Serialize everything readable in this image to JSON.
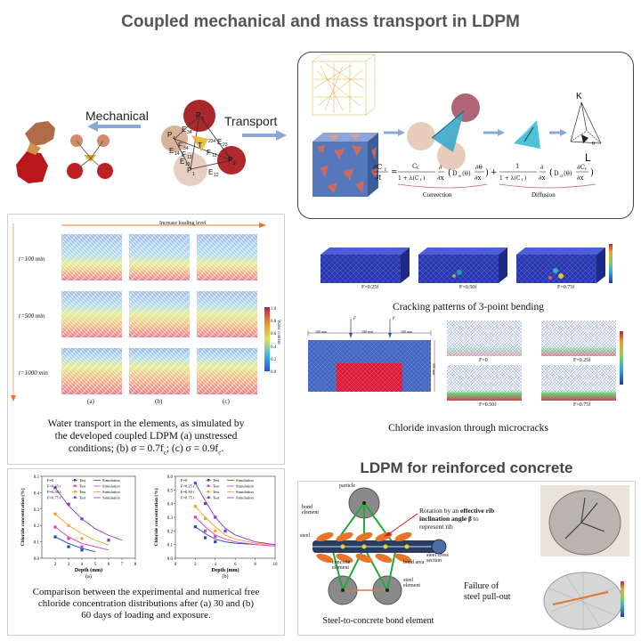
{
  "title": "Coupled mechanical and mass transport in LDPM",
  "mechanical": {
    "label": "Mechanical",
    "tokens": [
      "P",
      "3",
      "P",
      "4",
      "F",
      "34",
      "F",
      "13",
      "T",
      "234",
      "E",
      "23",
      "F",
      "12",
      "E",
      "34",
      "E",
      "14",
      "E",
      "13",
      "P",
      "2",
      "P",
      "1",
      "E",
      "12"
    ]
  },
  "transport": {
    "label": "Transport",
    "convection_label": "Convection",
    "diffusion_label": "Diffusion",
    "K_label": "K",
    "L_label": "L",
    "theta_label": "θ"
  },
  "water_panel": {
    "top_label": "Increase loading level",
    "rows": [
      "t=100 min",
      "t=500 min",
      "t=1000 min"
    ],
    "cols": [
      "(a)",
      "(b)",
      "(c)"
    ],
    "scale_ticks": [
      "1.0",
      "0.8",
      "0.6",
      "0.4",
      "0.2",
      "0.0"
    ],
    "scale_label": "Water content",
    "caption_lines": [
      "Water transport in the elements, as simulated by",
      "the developed coupled LDPM (a) unstressed",
      "conditions; (b) σ = 0.7f",
      "; (c) σ = 0.9f",
      "."
    ],
    "sub": "c"
  },
  "chloride_chart": {
    "caption_lines": [
      "Comparison between the experimental and numerical free",
      "chloride concentration distributions after (a) 30 and (b)",
      "60 days of loading and exposure."
    ]
  },
  "chart_data": [
    {
      "type": "line",
      "title": "",
      "xlabel": "Depth (mm)",
      "ylabel": "Chloride concentration (%)",
      "xlim": [
        1,
        8
      ],
      "ylim": [
        0.0,
        0.5
      ],
      "xticks": [
        2,
        3,
        4,
        5,
        6,
        7,
        8
      ],
      "yticks": [
        0.0,
        0.1,
        0.2,
        0.3,
        0.4,
        0.5
      ],
      "legend_labels": [
        "F=0",
        "F=0.25 f",
        "F=0.50 f",
        "F=0.75 f"
      ],
      "legend_test": "Test",
      "legend_sim": "Simulation",
      "sub_label": "(a)",
      "colors": [
        "#2244cc",
        "#dd44aa",
        "#f2a12a",
        "#8833cc"
      ],
      "series": [
        {
          "name": "F=0",
          "test": [
            [
              2,
              0.13
            ],
            [
              3,
              0.07
            ],
            [
              4,
              0.05
            ]
          ],
          "simulation": [
            [
              2,
              0.13
            ],
            [
              3,
              0.09
            ],
            [
              4,
              0.06
            ],
            [
              5,
              0.04
            ]
          ]
        },
        {
          "name": "F=0.25",
          "test": [
            [
              2,
              0.19
            ],
            [
              3,
              0.12
            ],
            [
              4,
              0.07
            ]
          ],
          "simulation": [
            [
              2,
              0.19
            ],
            [
              3,
              0.13
            ],
            [
              4,
              0.09
            ],
            [
              5,
              0.07
            ],
            [
              6,
              0.05
            ]
          ]
        },
        {
          "name": "F=0.50",
          "test": [
            [
              2,
              0.27
            ],
            [
              3,
              0.2
            ],
            [
              4,
              0.12
            ]
          ],
          "simulation": [
            [
              2,
              0.27
            ],
            [
              3,
              0.2
            ],
            [
              4,
              0.15
            ],
            [
              5,
              0.11
            ],
            [
              6,
              0.08
            ]
          ]
        },
        {
          "name": "F=0.75",
          "test": [
            [
              2,
              0.43
            ],
            [
              3,
              0.33
            ],
            [
              4,
              0.24
            ],
            [
              6,
              0.11
            ]
          ],
          "simulation": [
            [
              2,
              0.43
            ],
            [
              3,
              0.32
            ],
            [
              4,
              0.24
            ],
            [
              5,
              0.18
            ],
            [
              6,
              0.14
            ],
            [
              7,
              0.11
            ]
          ]
        }
      ]
    },
    {
      "type": "line",
      "title": "",
      "xlabel": "Depth (mm)",
      "ylabel": "Chloride concentration (%)",
      "xlim": [
        0,
        10
      ],
      "ylim": [
        0.0,
        0.6
      ],
      "xticks": [
        0,
        2,
        4,
        6,
        8,
        10
      ],
      "yticks": [
        0.0,
        0.1,
        0.2,
        0.3,
        0.4,
        0.5,
        0.6
      ],
      "legend_labels": [
        "F=0",
        "F=0.25 f",
        "F=0.50 f",
        "F=0.75 f"
      ],
      "legend_test": "Test",
      "legend_sim": "Simulation",
      "sub_label": "(b)",
      "colors": [
        "#2244cc",
        "#dd44aa",
        "#f2a12a",
        "#8833cc"
      ],
      "series": [
        {
          "name": "F=0",
          "test": [
            [
              2,
              0.23
            ],
            [
              3,
              0.15
            ],
            [
              4,
              0.12
            ]
          ],
          "simulation": [
            [
              2,
              0.23
            ],
            [
              3,
              0.18
            ],
            [
              4,
              0.14
            ],
            [
              5,
              0.12
            ],
            [
              6,
              0.11
            ],
            [
              8,
              0.1
            ],
            [
              10,
              0.09
            ]
          ]
        },
        {
          "name": "F=0.25",
          "test": [
            [
              2,
              0.3
            ],
            [
              3,
              0.2
            ],
            [
              4,
              0.16
            ]
          ],
          "simulation": [
            [
              2,
              0.3
            ],
            [
              3,
              0.23
            ],
            [
              4,
              0.17
            ],
            [
              5,
              0.14
            ],
            [
              6,
              0.12
            ],
            [
              8,
              0.1
            ],
            [
              10,
              0.09
            ]
          ]
        },
        {
          "name": "F=0.50",
          "test": [
            [
              2,
              0.38
            ],
            [
              3,
              0.29
            ],
            [
              4,
              0.2
            ]
          ],
          "simulation": [
            [
              2,
              0.38
            ],
            [
              3,
              0.3
            ],
            [
              4,
              0.23
            ],
            [
              5,
              0.17
            ],
            [
              6,
              0.14
            ],
            [
              8,
              0.11
            ],
            [
              10,
              0.1
            ]
          ]
        },
        {
          "name": "F=0.75",
          "test": [
            [
              2,
              0.55
            ],
            [
              3,
              0.4
            ],
            [
              4,
              0.3
            ],
            [
              5,
              0.2
            ]
          ],
          "simulation": [
            [
              2,
              0.55
            ],
            [
              3,
              0.42
            ],
            [
              4,
              0.3
            ],
            [
              5,
              0.22
            ],
            [
              6,
              0.17
            ],
            [
              8,
              0.12
            ],
            [
              10,
              0.1
            ]
          ]
        }
      ]
    }
  ],
  "cracking": {
    "labels": [
      "F=0.25f",
      "F=0.50f",
      "F=0.75f"
    ],
    "caption": "Cracking patterns of 3-point bending"
  },
  "chloride_invasion": {
    "dims": [
      "100 mm",
      "100 mm",
      "100 mm",
      "100 mm"
    ],
    "F": "F",
    "labels": [
      "F=0",
      "F=0.25f",
      "F=0.50f",
      "F=0.75f"
    ],
    "caption": "Chloride invasion through microcracks"
  },
  "rc": {
    "title": "LDPM for reinforced concrete",
    "labels": {
      "particle": "particle",
      "bond_element": "bond\nelement",
      "steel": "steel",
      "concrete_element": "concrete\nelement",
      "bond_area": "bond area",
      "steel_cross": "steel cross\nsection",
      "steel_element": "steel\nelement"
    },
    "rotation_note": [
      "Rotation by an ",
      "effective rib",
      "inclination angle β",
      " to",
      "represent rib"
    ],
    "caption": "Steel-to-concrete bond element",
    "failure": [
      "Failure of",
      "steel pull-out"
    ]
  },
  "colors": {
    "title": "#555555",
    "arrow": "#8aa9d6",
    "border": "#444444",
    "green": "#27a83a",
    "orange": "#e8742a"
  }
}
